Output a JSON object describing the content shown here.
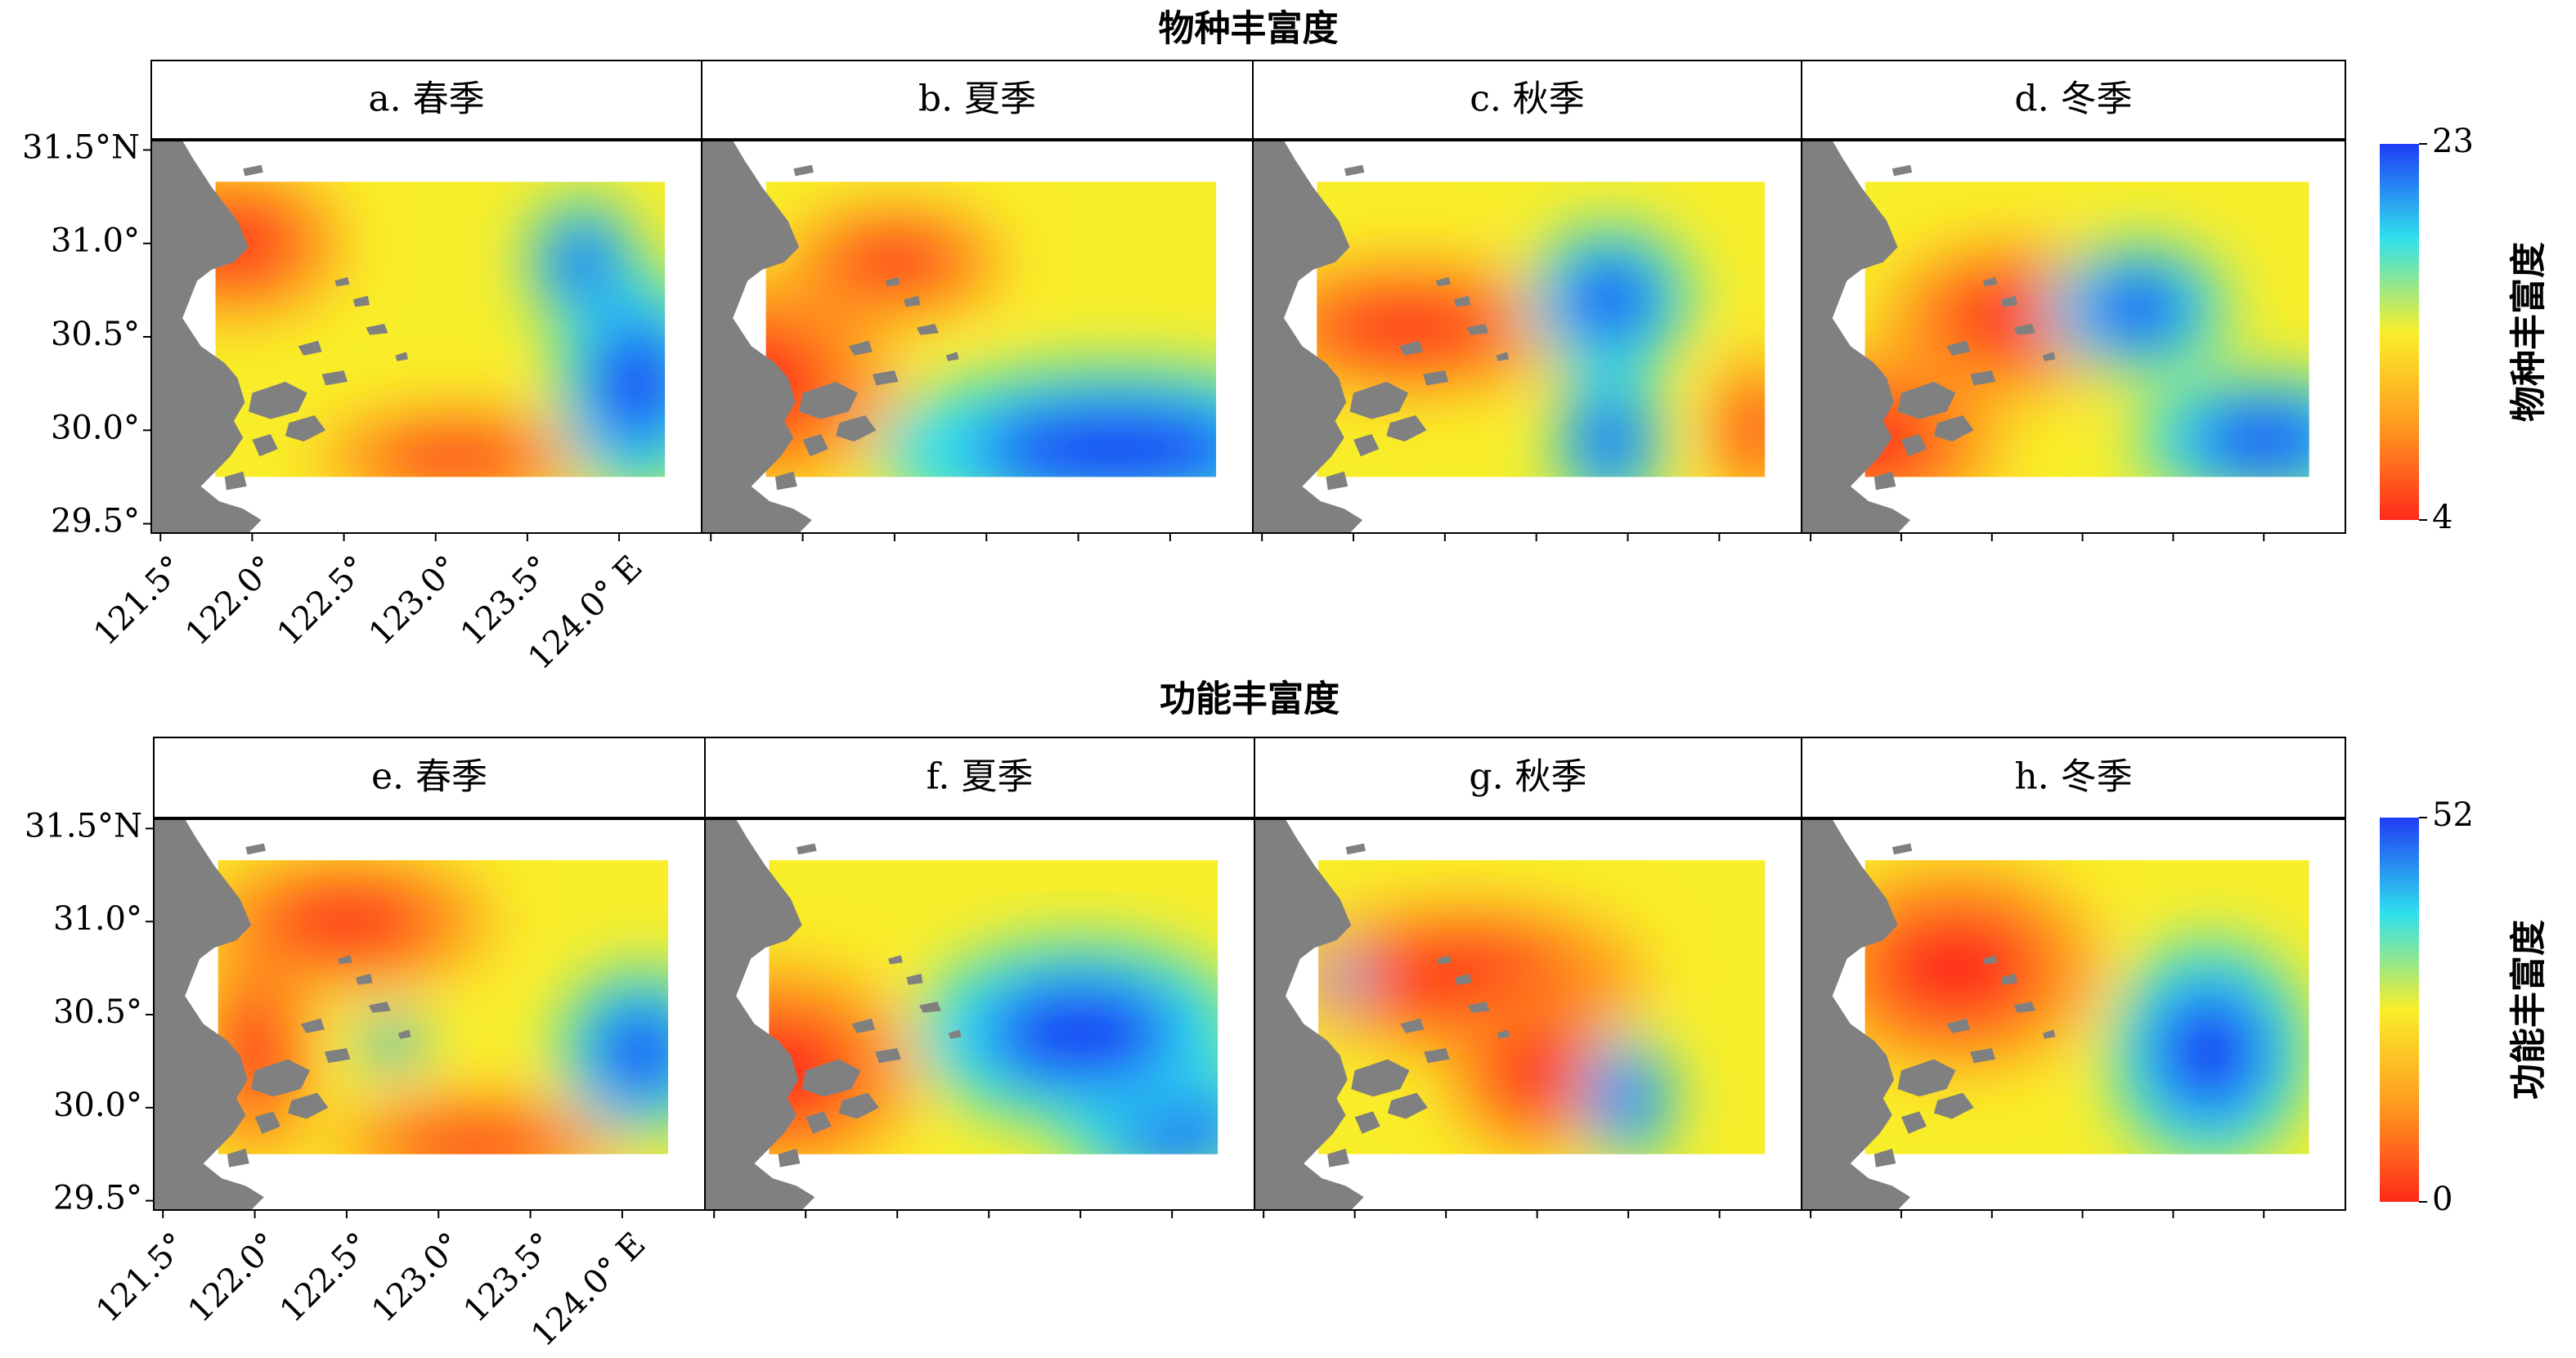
{
  "chart_data": [
    {
      "type": "heatmap",
      "title": "物种丰富度",
      "panels": [
        {
          "label": "a. 春季",
          "high_zones": [
            [
              124.1,
              30.25,
              0.45,
              0.6
            ],
            [
              123.8,
              30.9,
              0.3,
              0.35
            ]
          ],
          "low_zones": [
            [
              123.1,
              29.85,
              0.75,
              0.25
            ],
            [
              121.9,
              31.0,
              0.6,
              0.4
            ]
          ]
        },
        {
          "label": "b. 夏季",
          "high_zones": [
            [
              123.7,
              29.9,
              1.3,
              0.45
            ]
          ],
          "low_zones": [
            [
              121.7,
              30.25,
              0.8,
              0.55
            ],
            [
              122.5,
              30.9,
              0.6,
              0.3
            ]
          ]
        },
        {
          "label": "c. 秋季",
          "high_zones": [
            [
              123.4,
              30.7,
              0.45,
              0.4
            ],
            [
              123.4,
              29.95,
              0.3,
              0.4
            ]
          ],
          "low_zones": [
            [
              122.3,
              30.55,
              0.9,
              0.35
            ],
            [
              124.2,
              30.0,
              0.25,
              0.4
            ]
          ]
        },
        {
          "label": "d. 冬季",
          "high_zones": [
            [
              124.0,
              29.95,
              0.7,
              0.35
            ],
            [
              123.3,
              30.65,
              0.5,
              0.35
            ]
          ],
          "low_zones": [
            [
              121.8,
              29.95,
              0.75,
              0.45
            ],
            [
              122.6,
              30.6,
              0.7,
              0.4
            ]
          ]
        }
      ],
      "colorbar": {
        "title": "物种丰富度",
        "min": 4,
        "max": 23,
        "colors": [
          "#ff2a1a",
          "#ff9a1f",
          "#f9ee2a",
          "#2fe0ee",
          "#1f3cf5"
        ]
      },
      "x_ticks": [
        "121.5°",
        "122.0°",
        "122.5°",
        "123.0°",
        "123.5°",
        "124.0° E"
      ],
      "y_ticks": [
        "31.5°N",
        "31.0°",
        "30.5°",
        "30.0°",
        "29.5°"
      ],
      "xlim": [
        121.45,
        124.45
      ],
      "ylim": [
        29.45,
        31.55
      ],
      "data_extent": [
        121.8,
        124.25,
        29.75,
        31.33
      ]
    },
    {
      "type": "heatmap",
      "title": "功能丰富度",
      "panels": [
        {
          "label": "e. 春季",
          "high_zones": [
            [
              124.1,
              30.3,
              0.45,
              0.45
            ],
            [
              122.75,
              30.35,
              0.18,
              0.15
            ]
          ],
          "low_zones": [
            [
              122.5,
              31.0,
              0.8,
              0.35
            ],
            [
              123.2,
              29.8,
              0.8,
              0.25
            ],
            [
              122.0,
              30.3,
              0.3,
              0.6
            ]
          ]
        },
        {
          "label": "f. 夏季",
          "high_zones": [
            [
              124.0,
              29.9,
              0.6,
              0.35
            ],
            [
              123.5,
              30.4,
              0.9,
              0.5
            ]
          ],
          "low_zones": [
            [
              121.85,
              30.2,
              0.75,
              0.55
            ]
          ]
        },
        {
          "label": "g. 秋季",
          "high_zones": [
            [
              123.5,
              30.05,
              0.25,
              0.35
            ],
            [
              121.95,
              30.7,
              0.12,
              0.15
            ]
          ],
          "low_zones": [
            [
              122.6,
              30.7,
              1.0,
              0.4
            ],
            [
              123.0,
              30.2,
              0.5,
              0.45
            ]
          ]
        },
        {
          "label": "h. 冬季",
          "high_zones": [
            [
              123.7,
              30.3,
              0.55,
              0.6
            ]
          ],
          "low_zones": [
            [
              122.3,
              30.75,
              0.8,
              0.55
            ]
          ]
        }
      ],
      "colorbar": {
        "title": "功能丰富度",
        "min": 0,
        "max": 52,
        "colors": [
          "#ff2a1a",
          "#ff9a1f",
          "#f9ee2a",
          "#2fe0ee",
          "#1f3cf5"
        ]
      },
      "x_ticks": [
        "121.5°",
        "122.0°",
        "122.5°",
        "123.0°",
        "123.5°",
        "124.0° E"
      ],
      "y_ticks": [
        "31.5°N",
        "31.0°",
        "30.5°",
        "30.0°",
        "29.5°"
      ],
      "xlim": [
        121.45,
        124.45
      ],
      "ylim": [
        29.45,
        31.55
      ],
      "data_extent": [
        121.8,
        124.25,
        29.75,
        31.33
      ]
    }
  ],
  "colors": {
    "land": "#808080",
    "frame": "#000000",
    "strip_bg": "#ffffff"
  }
}
